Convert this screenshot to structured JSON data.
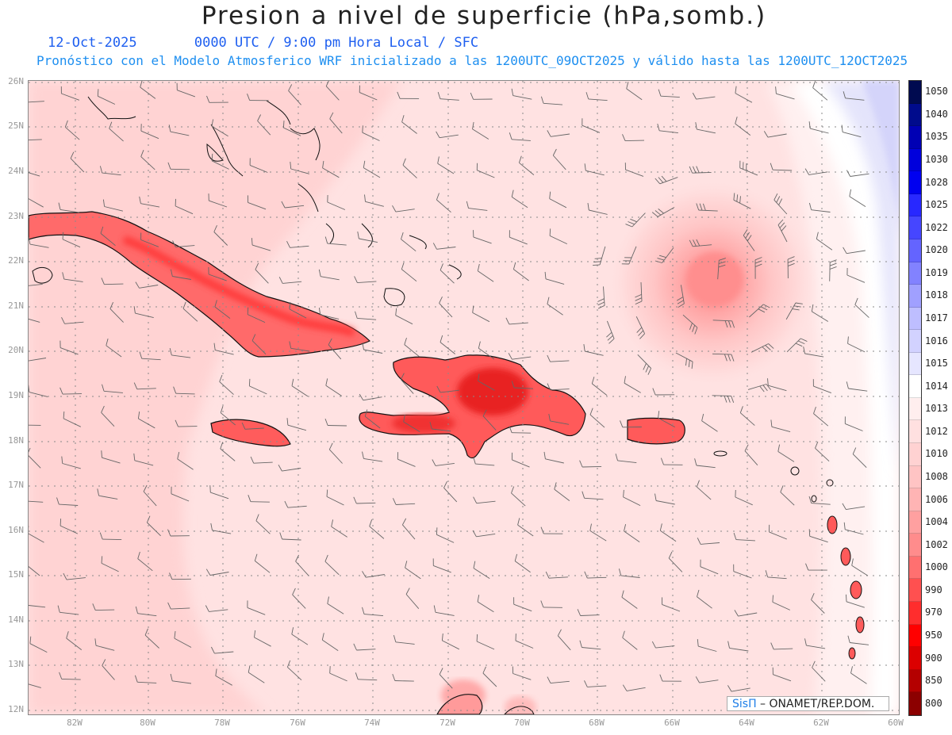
{
  "title": "Presion a nivel de superficie (hPa,somb.)",
  "date": "12-Oct-2025",
  "time_line": "0000 UTC / 9:00 pm Hora Local / SFC",
  "forecast_line": "Pronóstico con el Modelo Atmosferico WRF inicializado a las 1200UTC_09OCT2025 y válido hasta las  1200UTC_12OCT2025",
  "credit": {
    "brand": "SisΠ",
    "org": " – ONAMET/REP.DOM."
  },
  "lat_labels": [
    "26N",
    "25N",
    "24N",
    "23N",
    "22N",
    "21N",
    "20N",
    "19N",
    "18N",
    "17N",
    "16N",
    "15N",
    "14N",
    "13N",
    "12N"
  ],
  "lon_labels": [
    "82W",
    "80W",
    "78W",
    "76W",
    "74W",
    "72W",
    "70W",
    "68W",
    "66W",
    "64W",
    "62W",
    "60W"
  ],
  "colorbar": {
    "levels": [
      "1050",
      "1040",
      "1035",
      "1030",
      "1028",
      "1025",
      "1022",
      "1020",
      "1019",
      "1018",
      "1017",
      "1016",
      "1015",
      "1014",
      "1013",
      "1012",
      "1010",
      "1008",
      "1006",
      "1004",
      "1002",
      "1000",
      "990",
      "970",
      "950",
      "900",
      "850",
      "800"
    ],
    "colors": [
      "#000a50",
      "#000b8c",
      "#0000b4",
      "#0000dc",
      "#0000f0",
      "#2828ff",
      "#4646ff",
      "#6464ff",
      "#8282ff",
      "#a0a0ff",
      "#bebeff",
      "#d2d2ff",
      "#e6e6ff",
      "#ffffff",
      "#ffeeee",
      "#ffe0e0",
      "#ffd2d2",
      "#ffc4c4",
      "#ffb4b4",
      "#ffa0a0",
      "#ff8c8c",
      "#ff7070",
      "#ff5050",
      "#ff2d2d",
      "#ff0000",
      "#dc0000",
      "#b40000",
      "#8c0000"
    ]
  }
}
